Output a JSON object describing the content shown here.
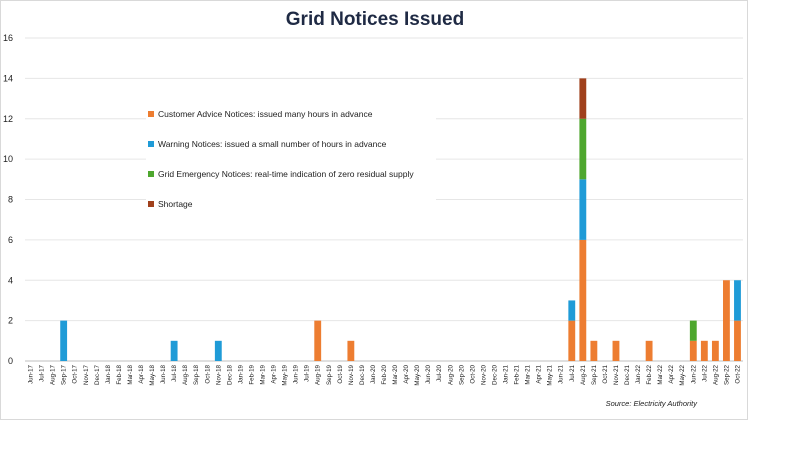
{
  "chart_data": {
    "type": "bar",
    "stacked": true,
    "title": "Grid Notices Issued",
    "xlabel": "",
    "ylabel": "",
    "ylim": [
      0,
      16
    ],
    "yticks": [
      0,
      2,
      4,
      6,
      8,
      10,
      12,
      14,
      16
    ],
    "grid": true,
    "legend_position": "upper-left inside plot",
    "categories": [
      "Jun-17",
      "Jul-17",
      "Aug-17",
      "Sep-17",
      "Oct-17",
      "Nov-17",
      "Dec-17",
      "Jan-18",
      "Feb-18",
      "Mar-18",
      "Apr-18",
      "May-18",
      "Jun-18",
      "Jul-18",
      "Aug-18",
      "Sep-18",
      "Oct-18",
      "Nov-18",
      "Dec-18",
      "Jan-19",
      "Feb-19",
      "Mar-19",
      "Apr-19",
      "May-19",
      "Jun-19",
      "Jul-19",
      "Aug-19",
      "Sep-19",
      "Oct-19",
      "Nov-19",
      "Dec-19",
      "Jan-20",
      "Feb-20",
      "Mar-20",
      "Apr-20",
      "May-20",
      "Jun-20",
      "Jul-20",
      "Aug-20",
      "Sep-20",
      "Oct-20",
      "Nov-20",
      "Dec-20",
      "Jan-21",
      "Feb-21",
      "Mar-21",
      "Apr-21",
      "May-21",
      "Jun-21",
      "Jul-21",
      "Aug-21",
      "Sep-21",
      "Oct-21",
      "Nov-21",
      "Dec-21",
      "Jan-22",
      "Feb-22",
      "Mar-22",
      "Apr-22",
      "May-22",
      "Jun-22",
      "Jul-22",
      "Aug-22",
      "Sep-22",
      "Oct-22"
    ],
    "series": [
      {
        "name": "Customer Advice Notices: issued many hours in advance",
        "color": "#ed7d31",
        "values": [
          0,
          0,
          0,
          0,
          0,
          0,
          0,
          0,
          0,
          0,
          0,
          0,
          0,
          0,
          0,
          0,
          0,
          0,
          0,
          0,
          0,
          0,
          0,
          0,
          0,
          0,
          2,
          0,
          0,
          1,
          0,
          0,
          0,
          0,
          0,
          0,
          0,
          0,
          0,
          0,
          0,
          0,
          0,
          0,
          0,
          0,
          0,
          0,
          0,
          2,
          6,
          1,
          0,
          1,
          0,
          0,
          1,
          0,
          0,
          0,
          1,
          1,
          1,
          4,
          2
        ]
      },
      {
        "name": "Warning Notices: issued a small number of hours in advance",
        "color": "#1f9bd7",
        "values": [
          0,
          0,
          0,
          2,
          0,
          0,
          0,
          0,
          0,
          0,
          0,
          0,
          0,
          1,
          0,
          0,
          0,
          1,
          0,
          0,
          0,
          0,
          0,
          0,
          0,
          0,
          0,
          0,
          0,
          0,
          0,
          0,
          0,
          0,
          0,
          0,
          0,
          0,
          0,
          0,
          0,
          0,
          0,
          0,
          0,
          0,
          0,
          0,
          0,
          1,
          3,
          0,
          0,
          0,
          0,
          0,
          0,
          0,
          0,
          0,
          0,
          0,
          0,
          0,
          2
        ]
      },
      {
        "name": "Grid Emergency Notices: real-time indication of zero residual supply",
        "color": "#4ea72e",
        "values": [
          0,
          0,
          0,
          0,
          0,
          0,
          0,
          0,
          0,
          0,
          0,
          0,
          0,
          0,
          0,
          0,
          0,
          0,
          0,
          0,
          0,
          0,
          0,
          0,
          0,
          0,
          0,
          0,
          0,
          0,
          0,
          0,
          0,
          0,
          0,
          0,
          0,
          0,
          0,
          0,
          0,
          0,
          0,
          0,
          0,
          0,
          0,
          0,
          0,
          0,
          3,
          0,
          0,
          0,
          0,
          0,
          0,
          0,
          0,
          0,
          1,
          0,
          0,
          0,
          0
        ]
      },
      {
        "name": "Shortage",
        "color": "#a0401c",
        "values": [
          0,
          0,
          0,
          0,
          0,
          0,
          0,
          0,
          0,
          0,
          0,
          0,
          0,
          0,
          0,
          0,
          0,
          0,
          0,
          0,
          0,
          0,
          0,
          0,
          0,
          0,
          0,
          0,
          0,
          0,
          0,
          0,
          0,
          0,
          0,
          0,
          0,
          0,
          0,
          0,
          0,
          0,
          0,
          0,
          0,
          0,
          0,
          0,
          0,
          0,
          2,
          0,
          0,
          0,
          0,
          0,
          0,
          0,
          0,
          0,
          0,
          0,
          0,
          0,
          0
        ]
      }
    ],
    "annotations": [
      "Source: Electricity Authority"
    ]
  }
}
